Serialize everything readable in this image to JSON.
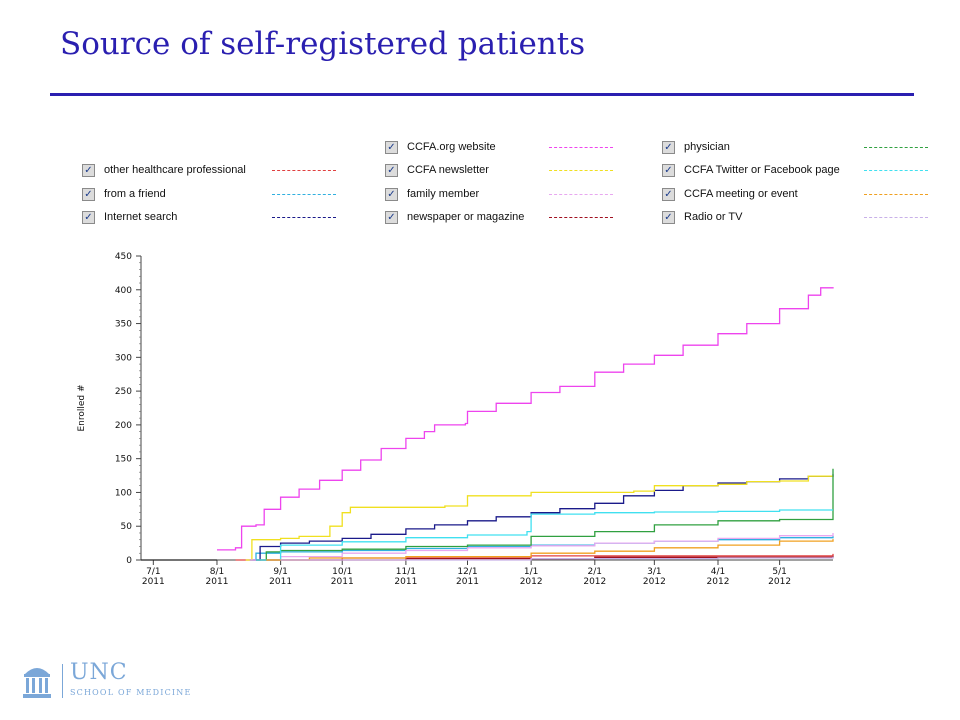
{
  "slide": {
    "title": "Source of self-registered patients"
  },
  "logo": {
    "name": "UNC",
    "subtitle": "SCHOOL OF MEDICINE"
  },
  "chart_data": {
    "type": "line",
    "ylabel": "Enrolled #",
    "xlabel": "",
    "ylim": [
      0,
      450
    ],
    "yticks": [
      0,
      50,
      100,
      150,
      200,
      250,
      300,
      350,
      400,
      450
    ],
    "xlim": [
      "2011-06-25",
      "2012-05-27"
    ],
    "x_ticks": [
      {
        "date": "2011-07-01",
        "line1": "7/1",
        "line2": "2011"
      },
      {
        "date": "2011-08-01",
        "line1": "8/1",
        "line2": "2011"
      },
      {
        "date": "2011-09-01",
        "line1": "9/1",
        "line2": "2011"
      },
      {
        "date": "2011-10-01",
        "line1": "10/1",
        "line2": "2011"
      },
      {
        "date": "2011-11-01",
        "line1": "11/1",
        "line2": "2011"
      },
      {
        "date": "2011-12-01",
        "line1": "12/1",
        "line2": "2011"
      },
      {
        "date": "2012-01-01",
        "line1": "1/1",
        "line2": "2012"
      },
      {
        "date": "2012-02-01",
        "line1": "2/1",
        "line2": "2012"
      },
      {
        "date": "2012-03-01",
        "line1": "3/1",
        "line2": "2012"
      },
      {
        "date": "2012-04-01",
        "line1": "4/1",
        "line2": "2012"
      },
      {
        "date": "2012-05-01",
        "line1": "5/1",
        "line2": "2012"
      }
    ],
    "grid": false,
    "legend_placement": "top",
    "series": [
      {
        "name": "other healthcare professional",
        "color": "#e04040",
        "points": [
          [
            "2011-08-10",
            0
          ],
          [
            "2011-10-01",
            3
          ],
          [
            "2012-01-01",
            6
          ],
          [
            "2012-05-27",
            9
          ]
        ]
      },
      {
        "name": "from a friend",
        "color": "#30b0e0",
        "points": [
          [
            "2011-08-17",
            0
          ],
          [
            "2011-08-20",
            10
          ],
          [
            "2011-09-01",
            12
          ],
          [
            "2011-10-01",
            14
          ],
          [
            "2011-11-01",
            17
          ],
          [
            "2011-12-01",
            20
          ],
          [
            "2012-01-01",
            22
          ],
          [
            "2012-02-01",
            25
          ],
          [
            "2012-03-01",
            28
          ],
          [
            "2012-04-01",
            30
          ],
          [
            "2012-05-01",
            33
          ],
          [
            "2012-05-27",
            36
          ]
        ]
      },
      {
        "name": "Internet search",
        "color": "#1a1a8a",
        "points": [
          [
            "2011-08-17",
            0
          ],
          [
            "2011-08-22",
            20
          ],
          [
            "2011-09-01",
            25
          ],
          [
            "2011-09-15",
            28
          ],
          [
            "2011-10-01",
            32
          ],
          [
            "2011-10-15",
            38
          ],
          [
            "2011-11-01",
            46
          ],
          [
            "2011-11-15",
            52
          ],
          [
            "2011-12-01",
            58
          ],
          [
            "2011-12-15",
            64
          ],
          [
            "2012-01-01",
            70
          ],
          [
            "2012-01-15",
            76
          ],
          [
            "2012-02-01",
            84
          ],
          [
            "2012-02-15",
            95
          ],
          [
            "2012-03-01",
            103
          ],
          [
            "2012-03-15",
            110
          ],
          [
            "2012-04-01",
            114
          ],
          [
            "2012-04-15",
            116
          ],
          [
            "2012-05-01",
            120
          ],
          [
            "2012-05-15",
            124
          ],
          [
            "2012-05-27",
            127
          ]
        ]
      },
      {
        "name": "CCFA.org website",
        "color": "#ee44ee",
        "points": [
          [
            "2011-08-01",
            15
          ],
          [
            "2011-08-10",
            18
          ],
          [
            "2011-08-13",
            50
          ],
          [
            "2011-08-20",
            52
          ],
          [
            "2011-08-24",
            75
          ],
          [
            "2011-09-01",
            93
          ],
          [
            "2011-09-10",
            105
          ],
          [
            "2011-09-20",
            118
          ],
          [
            "2011-10-01",
            133
          ],
          [
            "2011-10-10",
            148
          ],
          [
            "2011-10-20",
            165
          ],
          [
            "2011-11-01",
            180
          ],
          [
            "2011-11-10",
            190
          ],
          [
            "2011-11-15",
            200
          ],
          [
            "2011-11-30",
            202
          ],
          [
            "2011-12-01",
            220
          ],
          [
            "2011-12-15",
            232
          ],
          [
            "2012-01-01",
            248
          ],
          [
            "2012-01-15",
            257
          ],
          [
            "2012-02-01",
            278
          ],
          [
            "2012-02-15",
            290
          ],
          [
            "2012-03-01",
            303
          ],
          [
            "2012-03-15",
            318
          ],
          [
            "2012-04-01",
            335
          ],
          [
            "2012-04-15",
            350
          ],
          [
            "2012-05-01",
            372
          ],
          [
            "2012-05-15",
            392
          ],
          [
            "2012-05-21",
            403
          ],
          [
            "2012-05-27",
            404
          ]
        ]
      },
      {
        "name": "CCFA newsletter",
        "color": "#f0e020",
        "points": [
          [
            "2011-08-15",
            0
          ],
          [
            "2011-08-18",
            30
          ],
          [
            "2011-09-01",
            32
          ],
          [
            "2011-09-10",
            35
          ],
          [
            "2011-09-25",
            50
          ],
          [
            "2011-10-01",
            70
          ],
          [
            "2011-10-05",
            78
          ],
          [
            "2011-11-20",
            80
          ],
          [
            "2011-12-01",
            95
          ],
          [
            "2012-01-01",
            100
          ],
          [
            "2012-02-01",
            100
          ],
          [
            "2012-02-20",
            102
          ],
          [
            "2012-03-01",
            110
          ],
          [
            "2012-04-01",
            112
          ],
          [
            "2012-04-15",
            116
          ],
          [
            "2012-05-01",
            117
          ],
          [
            "2012-05-15",
            124
          ],
          [
            "2012-05-27",
            124
          ]
        ]
      },
      {
        "name": "family member",
        "color": "#e8a8f0",
        "points": [
          [
            "2011-08-17",
            0
          ],
          [
            "2011-09-01",
            5
          ],
          [
            "2011-10-01",
            10
          ],
          [
            "2011-11-01",
            14
          ],
          [
            "2011-12-01",
            18
          ],
          [
            "2012-01-01",
            21
          ],
          [
            "2012-02-01",
            25
          ],
          [
            "2012-03-01",
            28
          ],
          [
            "2012-04-01",
            32
          ],
          [
            "2012-05-01",
            36
          ],
          [
            "2012-05-27",
            40
          ]
        ]
      },
      {
        "name": "newspaper or magazine",
        "color": "#a01020",
        "points": [
          [
            "2011-08-20",
            0
          ],
          [
            "2011-11-01",
            2
          ],
          [
            "2012-02-01",
            4
          ],
          [
            "2012-05-27",
            6
          ]
        ]
      },
      {
        "name": "physician",
        "color": "#30a040",
        "points": [
          [
            "2011-08-20",
            0
          ],
          [
            "2011-08-25",
            12
          ],
          [
            "2011-09-01",
            14
          ],
          [
            "2011-10-01",
            16
          ],
          [
            "2011-11-01",
            20
          ],
          [
            "2011-12-01",
            22
          ],
          [
            "2012-01-01",
            35
          ],
          [
            "2012-02-01",
            42
          ],
          [
            "2012-03-01",
            52
          ],
          [
            "2012-04-01",
            58
          ],
          [
            "2012-05-01",
            60
          ],
          [
            "2012-05-26",
            60
          ],
          [
            "2012-05-27",
            135
          ]
        ]
      },
      {
        "name": "CCFA Twitter or Facebook page",
        "color": "#40e0f0",
        "points": [
          [
            "2011-08-20",
            0
          ],
          [
            "2011-09-01",
            22
          ],
          [
            "2011-10-01",
            27
          ],
          [
            "2011-11-01",
            33
          ],
          [
            "2011-12-01",
            37
          ],
          [
            "2011-12-30",
            42
          ],
          [
            "2012-01-01",
            68
          ],
          [
            "2012-02-01",
            70
          ],
          [
            "2012-03-01",
            71
          ],
          [
            "2012-04-01",
            72
          ],
          [
            "2012-05-01",
            74
          ],
          [
            "2012-05-27",
            74
          ]
        ]
      },
      {
        "name": "CCFA meeting or event",
        "color": "#f0a020",
        "points": [
          [
            "2011-08-25",
            0
          ],
          [
            "2011-09-15",
            3
          ],
          [
            "2011-11-01",
            5
          ],
          [
            "2012-01-01",
            10
          ],
          [
            "2012-02-01",
            13
          ],
          [
            "2012-03-01",
            18
          ],
          [
            "2012-04-01",
            22
          ],
          [
            "2012-05-01",
            28
          ],
          [
            "2012-05-27",
            31
          ]
        ]
      },
      {
        "name": "Radio or TV",
        "color": "#c8b0e8",
        "points": [
          [
            "2011-09-01",
            0
          ],
          [
            "2012-01-01",
            2
          ],
          [
            "2012-04-01",
            3
          ],
          [
            "2012-05-27",
            5
          ]
        ]
      }
    ]
  }
}
